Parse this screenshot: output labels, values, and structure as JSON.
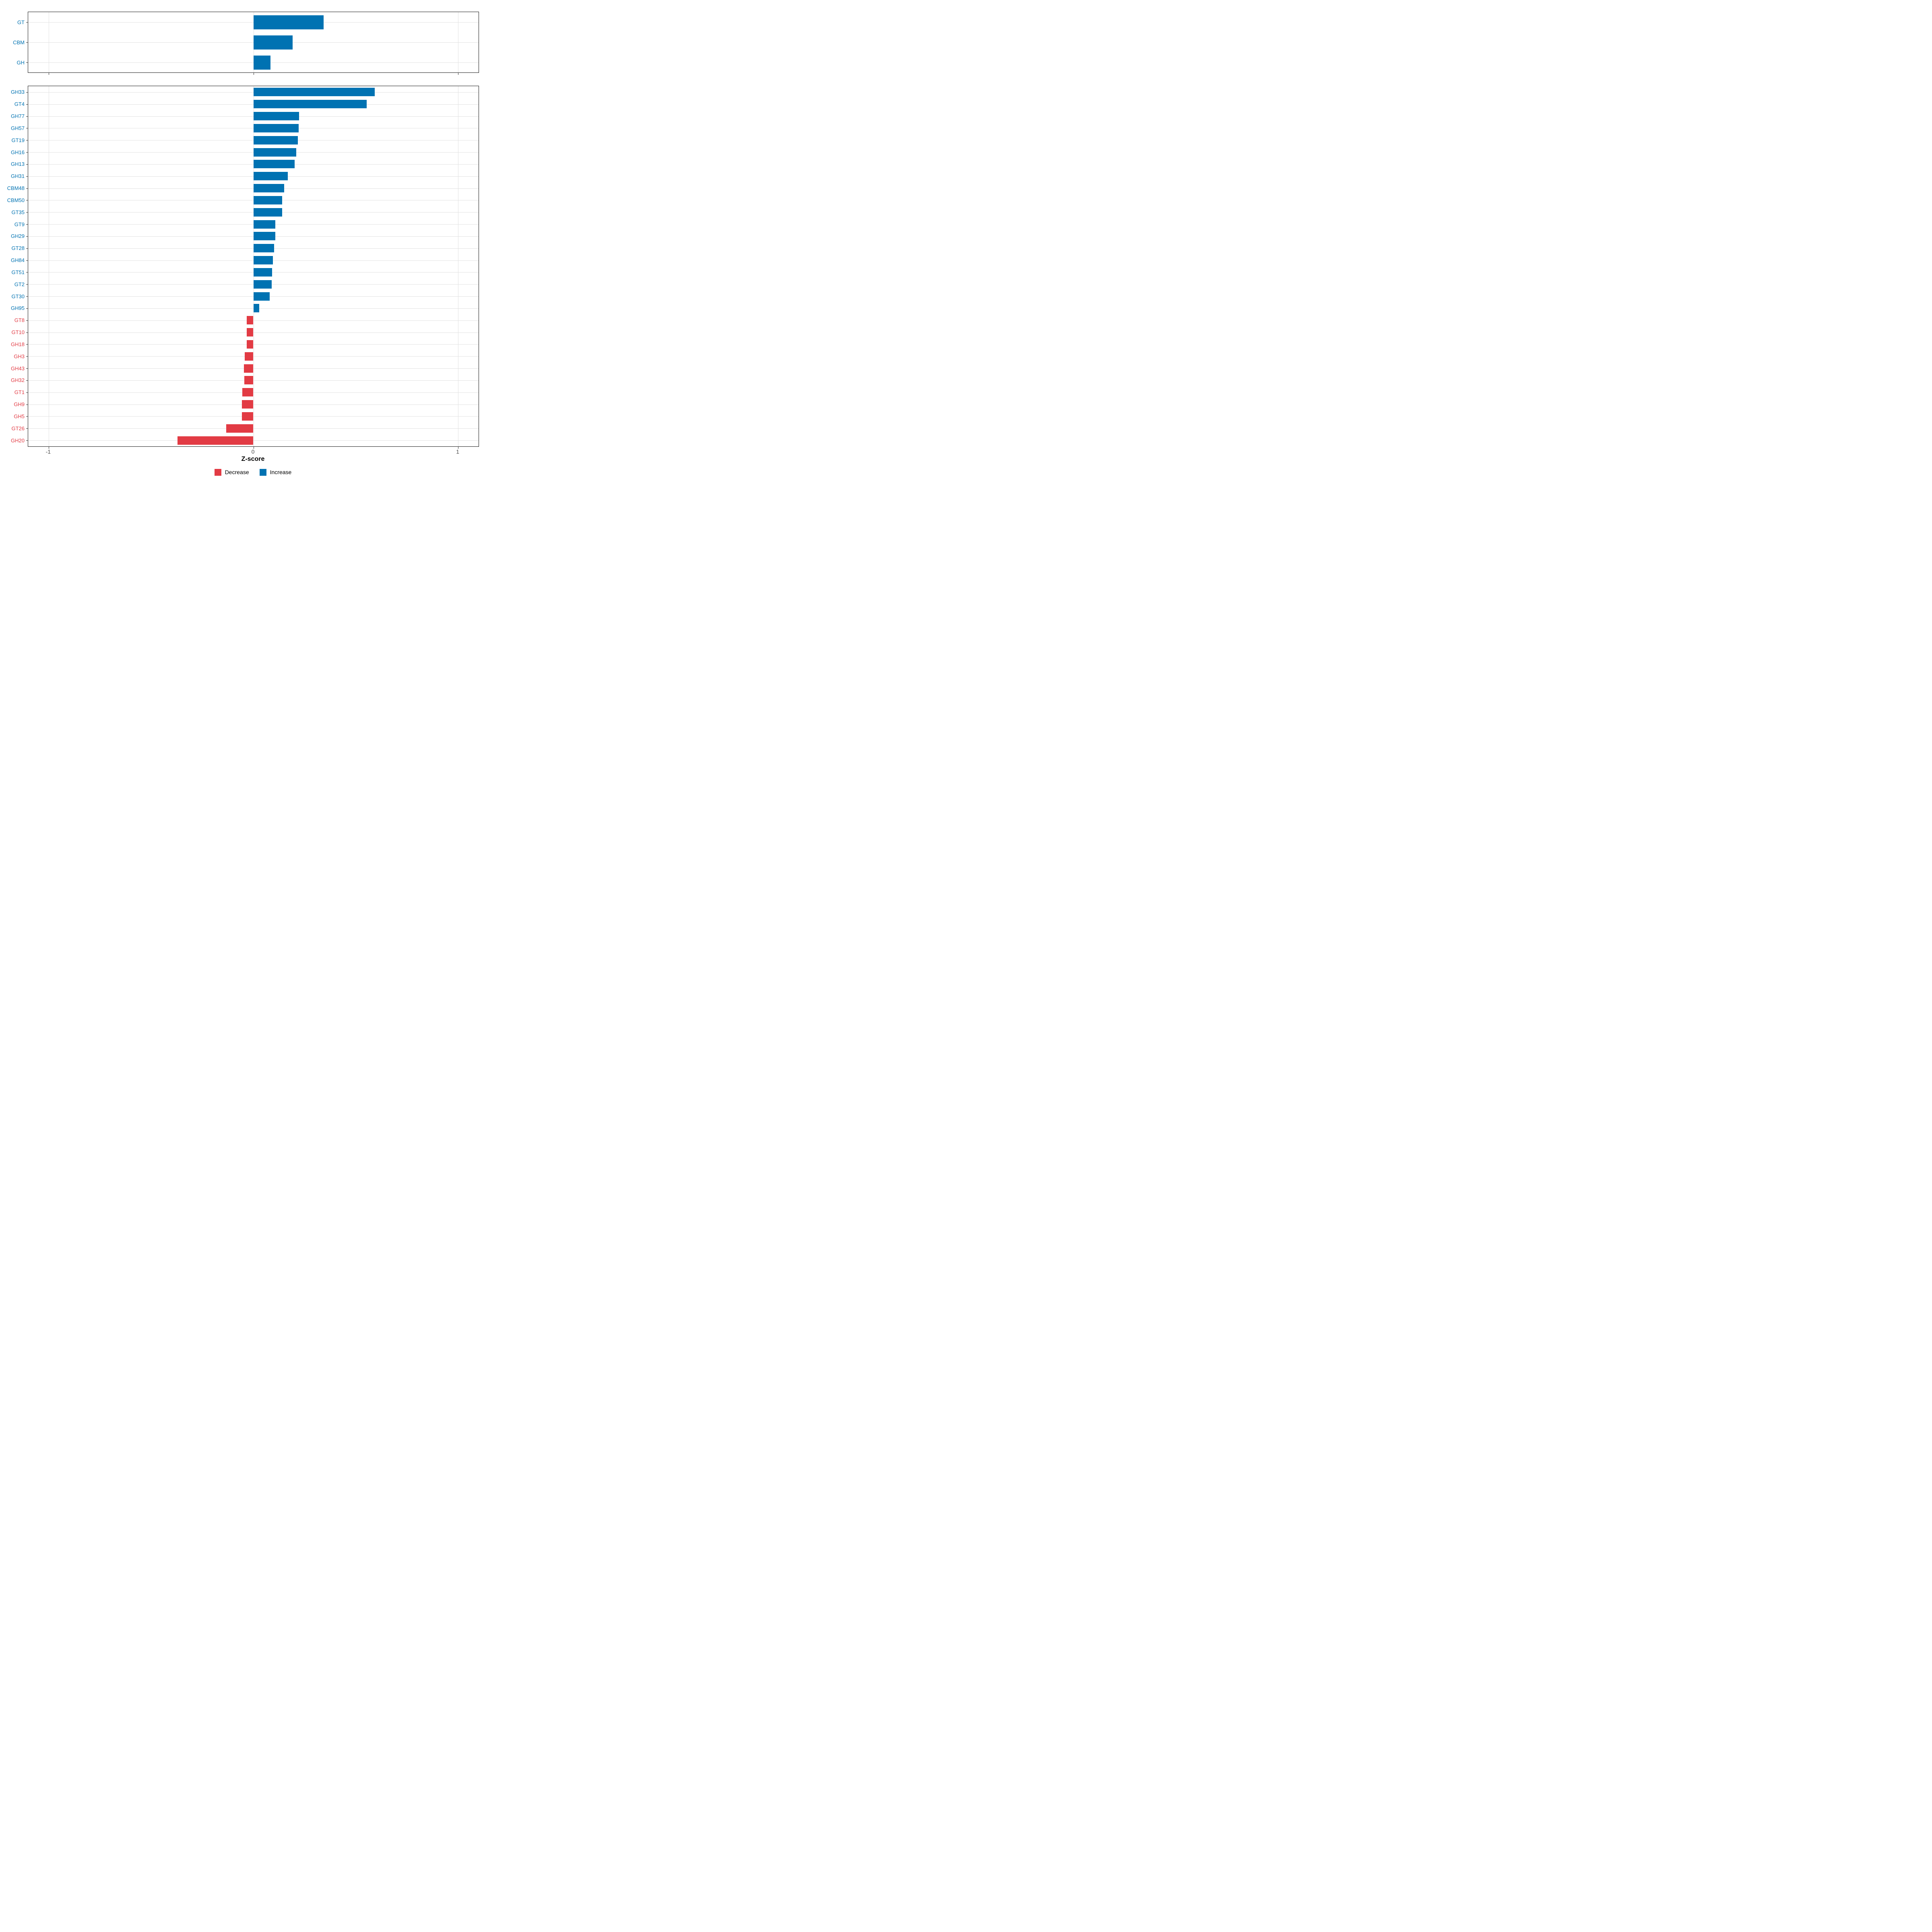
{
  "chart_data": {
    "type": "bar",
    "orientation": "horizontal",
    "title": "",
    "xlabel": "Z-score",
    "ylabel": "",
    "xlim": [
      -1.1,
      1.1
    ],
    "x_ticks": [
      -1,
      0,
      1
    ],
    "x_tick_labels": [
      "-1",
      "0",
      "1"
    ],
    "grid": "major gridlines, light gray, black panel border",
    "legend_position": "bottom",
    "colors": {
      "increase": "#0072B2",
      "decrease": "#E23B44"
    },
    "legend": [
      {
        "label": "Decrease",
        "color": "#E23B44"
      },
      {
        "label": "Increase",
        "color": "#0072B2"
      }
    ],
    "panels": [
      {
        "name": "top",
        "categories": [
          "GT",
          "CBM",
          "GH"
        ],
        "values": [
          0.344,
          0.192,
          0.083
        ]
      },
      {
        "name": "bottom",
        "categories": [
          "GH33",
          "GT4",
          "GH77",
          "GH57",
          "GT19",
          "GH16",
          "GH13",
          "GH31",
          "CBM48",
          "CBM50",
          "GT35",
          "GT9",
          "GH29",
          "GT28",
          "GH84",
          "GT51",
          "GT2",
          "GT30",
          "GH95",
          "GT8",
          "GT10",
          "GH18",
          "GH3",
          "GH43",
          "GH32",
          "GT1",
          "GH9",
          "GH5",
          "GT26",
          "GH20"
        ],
        "values": [
          0.592,
          0.553,
          0.223,
          0.222,
          0.217,
          0.21,
          0.202,
          0.168,
          0.151,
          0.14,
          0.14,
          0.108,
          0.107,
          0.101,
          0.096,
          0.091,
          0.089,
          0.08,
          0.029,
          -0.032,
          -0.032,
          -0.032,
          -0.043,
          -0.046,
          -0.045,
          -0.055,
          -0.057,
          -0.056,
          -0.132,
          -0.371
        ]
      }
    ]
  },
  "axis": {
    "title": "Z-score",
    "tick_labels": [
      "-1",
      "0",
      "1"
    ]
  },
  "legend": {
    "decrease_label": "Decrease",
    "increase_label": "Increase"
  }
}
